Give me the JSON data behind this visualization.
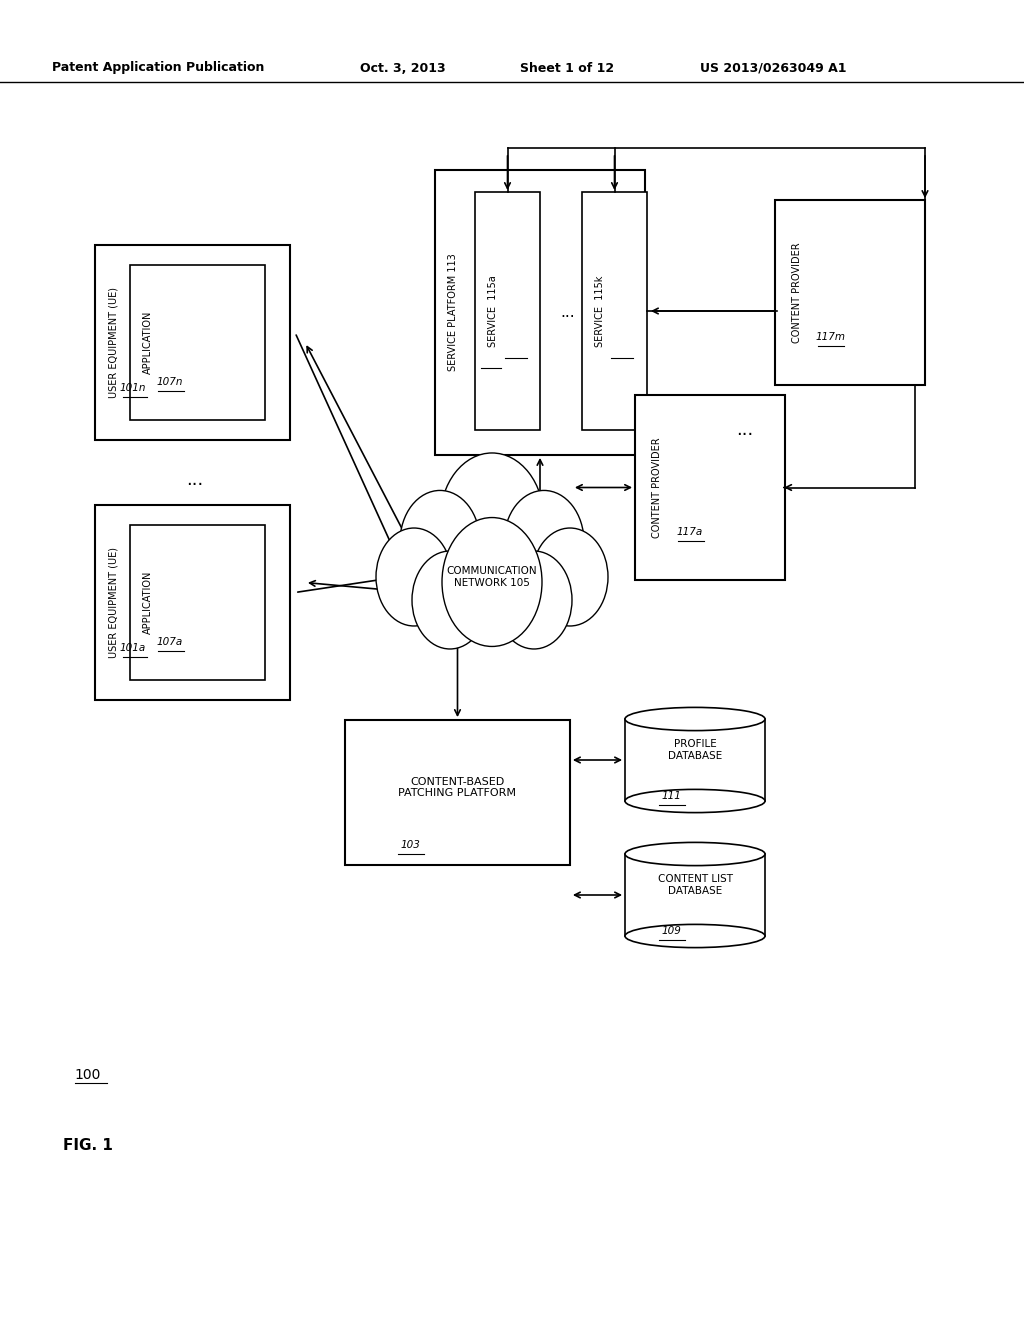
{
  "bg_color": "#ffffff",
  "header_text": "Patent Application Publication",
  "header_date": "Oct. 3, 2013",
  "header_sheet": "Sheet 1 of 12",
  "header_patent": "US 2013/0263049 A1",
  "fig_label": "FIG. 1",
  "fig_number": "100"
}
